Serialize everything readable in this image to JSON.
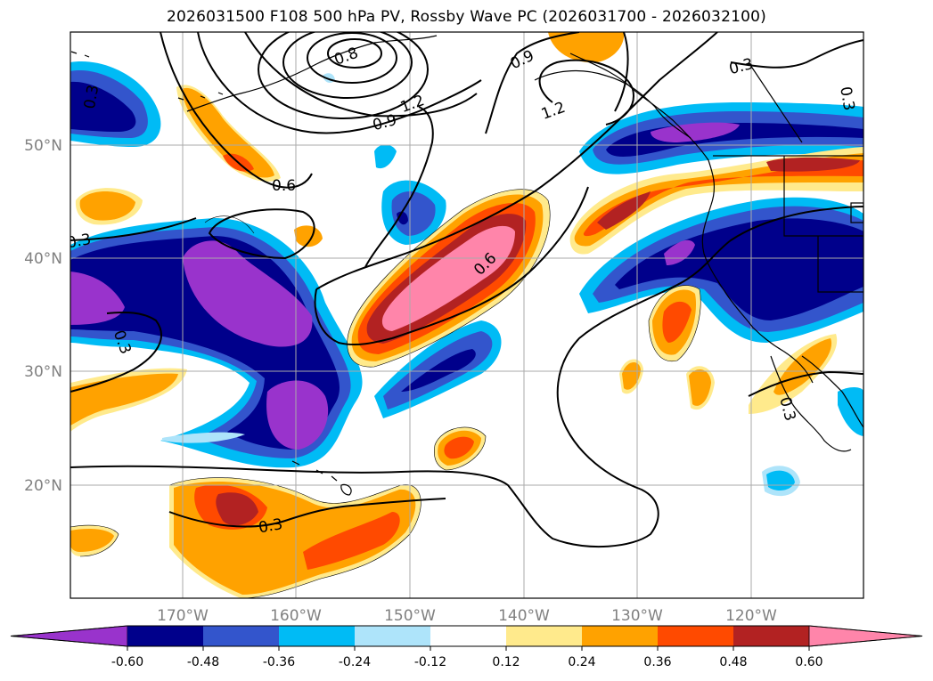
{
  "title": "2026031500 F108 500 hPa PV, Rossby Wave PC (2026031700 - 2026032100)",
  "map": {
    "lat_labels": [
      "50°N",
      "40°N",
      "30°N",
      "20°N"
    ],
    "lon_labels": [
      "170°W",
      "160°W",
      "150°W",
      "140°W",
      "130°W",
      "120°W"
    ],
    "contour_labels": [
      "0.3",
      "0.8",
      "1.2",
      "0.9",
      "1.2",
      "0.9",
      "0.3",
      "0.3",
      "0.6",
      "0.3",
      "0.6",
      "0.3",
      "0.3",
      "0.3"
    ]
  },
  "colorbar": {
    "ticks": [
      "-0.60",
      "-0.48",
      "-0.36",
      "-0.24",
      "-0.12",
      "0.12",
      "0.24",
      "0.36",
      "0.48",
      "0.60"
    ],
    "colors": [
      "#9933cc",
      "#00008b",
      "#3355cc",
      "#00bbf5",
      "#aee4fa",
      "#ffffff",
      "#ffea8c",
      "#ffa200",
      "#ff4a00",
      "#b22222",
      "#ff85aa"
    ]
  }
}
